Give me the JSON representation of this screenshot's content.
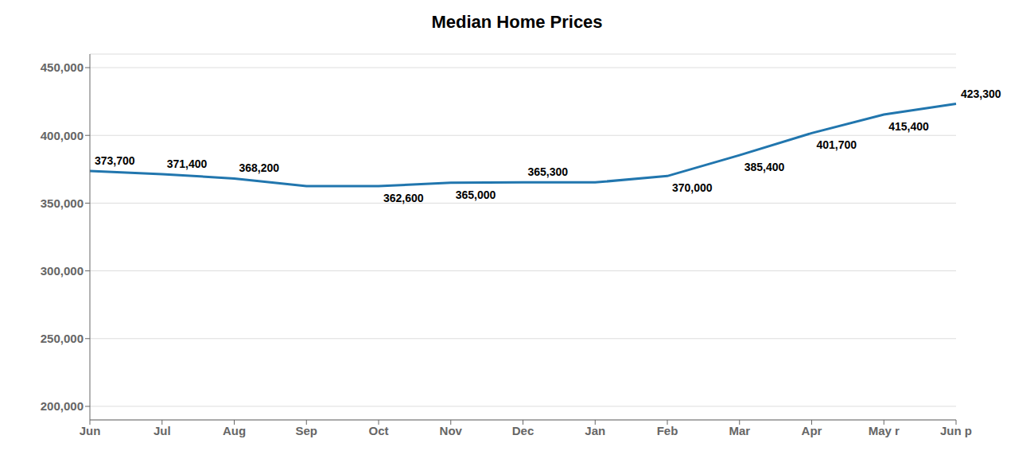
{
  "chart_data": {
    "type": "line",
    "title": "Median Home Prices",
    "categories": [
      "Jun",
      "Jul",
      "Aug",
      "Sep",
      "Oct",
      "Nov",
      "Dec",
      "Jan",
      "Feb",
      "Mar",
      "Apr",
      "May r",
      "Jun p"
    ],
    "values": [
      373700,
      371400,
      368200,
      362600,
      362600,
      365000,
      365300,
      365300,
      370000,
      385400,
      401700,
      415400,
      423300
    ],
    "color": "#2176ae",
    "ylim": [
      190000,
      460000
    ],
    "yticks": [
      {
        "value": 200000,
        "label": "200,000"
      },
      {
        "value": 250000,
        "label": "250,000"
      },
      {
        "value": 300000,
        "label": "300,000"
      },
      {
        "value": 350000,
        "label": "350,000"
      },
      {
        "value": 400000,
        "label": "400,000"
      },
      {
        "value": 450000,
        "label": "450,000"
      }
    ],
    "grid": true,
    "annotations": [
      {
        "x": "Jun",
        "y": 373700,
        "label": "373,700"
      },
      {
        "x": "Jul",
        "y": 371400,
        "label": "371,400"
      },
      {
        "x": "Aug",
        "y": 368200,
        "label": "368,200"
      },
      {
        "x": "Oct",
        "y": 362600,
        "label": "362,600"
      },
      {
        "x": "Nov",
        "y": 365000,
        "label": "365,000"
      },
      {
        "x": "Dec",
        "y": 365300,
        "label": "365,300"
      },
      {
        "x": "Feb",
        "y": 370000,
        "label": "370,000"
      },
      {
        "x": "Mar",
        "y": 385400,
        "label": "385,400"
      },
      {
        "x": "Apr",
        "y": 401700,
        "label": "401,700"
      },
      {
        "x": "May r",
        "y": 415400,
        "label": "415,400"
      },
      {
        "x": "Jun p",
        "y": 423300,
        "label": "423,300"
      }
    ]
  }
}
